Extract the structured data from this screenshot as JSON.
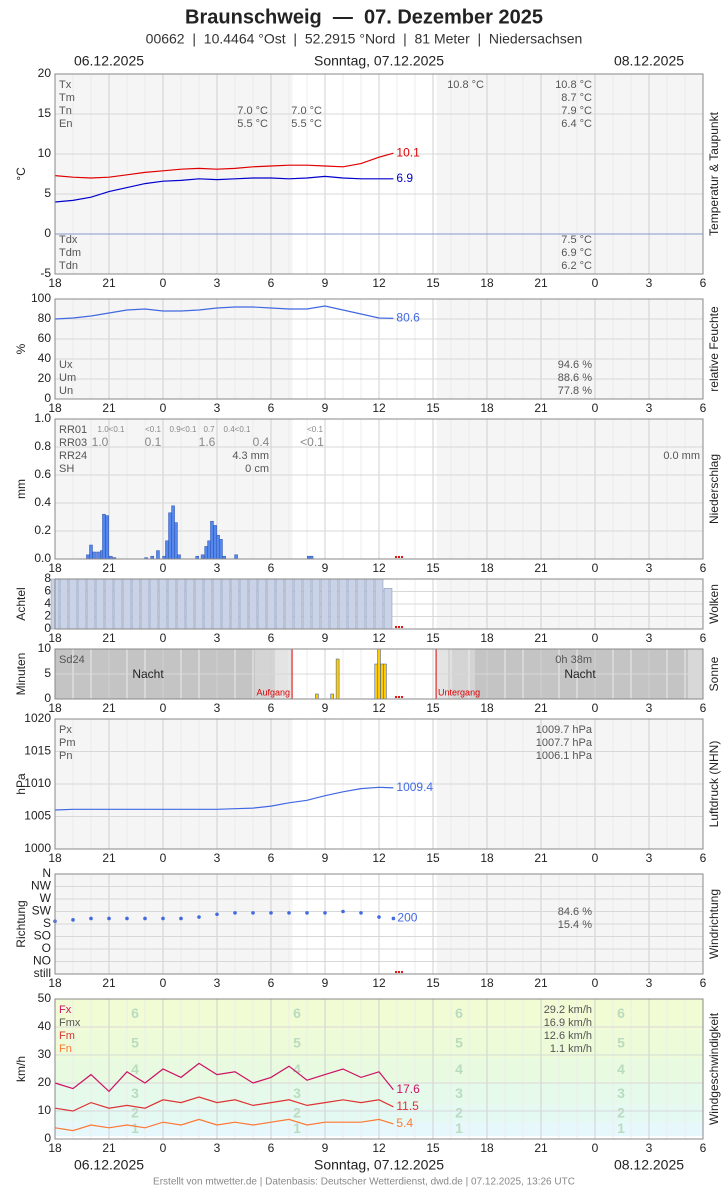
{
  "header": {
    "title": "Braunschweig  —  07. Dezember 2025",
    "subtitle": "00662  |  10.4464 °Ost  |  52.2915 °Nord  |  81 Meter  |  Niedersachsen",
    "dates": [
      "06.12.2025",
      "Sonntag, 07.12.2025",
      "08.12.2025"
    ]
  },
  "x_axis": {
    "xlim": [
      0,
      36
    ],
    "xticks": [
      {
        "value": 0,
        "label": "18"
      },
      {
        "value": 3,
        "label": "21"
      },
      {
        "value": 6,
        "label": "0"
      },
      {
        "value": 9,
        "label": "3"
      },
      {
        "value": 12,
        "label": "6"
      },
      {
        "value": 15,
        "label": "9"
      },
      {
        "value": 18,
        "label": "12"
      },
      {
        "value": 21,
        "label": "15"
      },
      {
        "value": 24,
        "label": "18"
      },
      {
        "value": 27,
        "label": "21"
      },
      {
        "value": 30,
        "label": "0"
      },
      {
        "value": 33,
        "label": "3"
      },
      {
        "value": 36,
        "label": "6"
      }
    ]
  },
  "chart_data": [
    {
      "type": "line",
      "side_label": "Temperatur & Taupunkt",
      "ylabel": "°C",
      "ylim": [
        -5,
        20
      ],
      "yticks": [
        20,
        15,
        10,
        5,
        0,
        -5
      ],
      "x": [
        0,
        1,
        2,
        3,
        4,
        5,
        6,
        7,
        8,
        9,
        10,
        11,
        12,
        13,
        14,
        15,
        16,
        17,
        18,
        18.8
      ],
      "series": [
        {
          "color": "#e00000",
          "values": [
            7.3,
            7.1,
            7.0,
            7.1,
            7.4,
            7.7,
            7.9,
            8.1,
            8.2,
            8.1,
            8.2,
            8.4,
            8.5,
            8.6,
            8.6,
            8.5,
            8.4,
            8.8,
            9.6,
            10.1
          ]
        },
        {
          "color": "#0000cc",
          "values": [
            4.0,
            4.2,
            4.6,
            5.3,
            5.8,
            6.3,
            6.6,
            6.7,
            6.9,
            6.8,
            6.9,
            7.0,
            7.0,
            6.9,
            7.0,
            7.2,
            7.0,
            6.9,
            6.9,
            6.9
          ]
        }
      ],
      "stats": [
        {
          "label": "Tx",
          "cells": [
            null,
            null,
            "10.8 °C",
            "10.8 °C"
          ]
        },
        {
          "label": "Tm",
          "cells": [
            null,
            null,
            null,
            "8.7 °C"
          ]
        },
        {
          "label": "Tn",
          "cells": [
            "7.0 °C",
            "7.0 °C",
            null,
            "7.9 °C"
          ]
        },
        {
          "label": "En",
          "cells": [
            "5.5 °C",
            "5.5 °C",
            null,
            "6.4 °C"
          ]
        },
        {
          "label": "Tdx",
          "cells": [
            "7.5 °C"
          ]
        },
        {
          "label": "Tdm",
          "cells": [
            "6.9 °C"
          ]
        },
        {
          "label": "Tdn",
          "cells": [
            "6.2 °C"
          ]
        }
      ]
    },
    {
      "type": "line",
      "side_label": "relative Feuchte",
      "ylabel": "%",
      "ylim": [
        0,
        100
      ],
      "yticks": [
        100,
        80,
        60,
        40,
        20,
        0
      ],
      "x": [
        0,
        1,
        2,
        3,
        4,
        5,
        6,
        7,
        8,
        9,
        10,
        11,
        12,
        13,
        14,
        15,
        16,
        17,
        18,
        18.8
      ],
      "series": [
        {
          "color": "#4169e1",
          "values": [
            80,
            81,
            83,
            86,
            89,
            90,
            88,
            88,
            89,
            91,
            92,
            92,
            91,
            90,
            90,
            93,
            89,
            85,
            81,
            80.6
          ]
        }
      ],
      "stats": [
        {
          "label": "Ux",
          "cells": [
            "94.6 %"
          ]
        },
        {
          "label": "Um",
          "cells": [
            "88.6 %"
          ]
        },
        {
          "label": "Un",
          "cells": [
            "77.8 %"
          ]
        }
      ]
    },
    {
      "type": "bar",
      "side_label": "Niederschlag",
      "ylabel": "mm",
      "color": "#5588ee",
      "ylim": [
        0,
        1
      ],
      "yticks": [
        {
          "value": 1,
          "label": "1.0"
        },
        {
          "value": 0.8,
          "label": "0.8"
        },
        {
          "value": 0.6,
          "label": "0.6"
        },
        {
          "value": 0.4,
          "label": "0.4"
        },
        {
          "value": 0.2,
          "label": "0.2"
        },
        {
          "value": 0,
          "label": "0.0"
        }
      ],
      "x": [
        1.83,
        2.0,
        2.17,
        2.39,
        2.6,
        2.72,
        2.9,
        3.1,
        3.3,
        5.06,
        5.4,
        5.72,
        6.06,
        6.22,
        6.39,
        6.56,
        6.72,
        6.89,
        7.9,
        8.2,
        8.4,
        8.56,
        8.72,
        8.9,
        9.06,
        9.22,
        9.4,
        10.06,
        14.1,
        14.25
      ],
      "values": [
        0.03,
        0.1,
        0.05,
        0.05,
        0.06,
        0.32,
        0.31,
        0.02,
        0.01,
        0.01,
        0.02,
        0.06,
        0.02,
        0.13,
        0.33,
        0.38,
        0.26,
        0.03,
        0.02,
        0.03,
        0.09,
        0.13,
        0.27,
        0.24,
        0.17,
        0.14,
        0.02,
        0.03,
        0.02,
        0.02
      ],
      "stats": [
        {
          "label": "RR01",
          "cells": [
            "1.0<0.1",
            "<0.1",
            "0.9<0.1",
            "0.7",
            "0.4<0.1",
            "<0.1"
          ]
        },
        {
          "label": "RR03",
          "cells": [
            "1.0",
            "0.1",
            "1.6",
            "0.4",
            "<0.1"
          ]
        },
        {
          "label": "RR24",
          "cells": [
            "4.3 mm",
            "0.0 mm"
          ]
        },
        {
          "label": "SH",
          "cells": [
            "0 cm"
          ]
        }
      ]
    },
    {
      "type": "bar",
      "side_label": "Wolken",
      "ylabel": "Achtel",
      "color": "#c9d2e6",
      "ylim": [
        0,
        8
      ],
      "yticks": [
        8,
        6,
        4,
        2,
        0
      ],
      "x": [
        0,
        0.5,
        1,
        1.5,
        2,
        2.5,
        3,
        3.5,
        4,
        4.5,
        5,
        5.5,
        6,
        6.5,
        7,
        7.5,
        8,
        8.5,
        9,
        9.5,
        10,
        10.5,
        11,
        11.5,
        12,
        12.5,
        13,
        13.5,
        14,
        14.5,
        15,
        15.5,
        16,
        16.5,
        17,
        17.5,
        18,
        18.5
      ],
      "values": [
        8,
        8,
        8,
        8,
        8,
        8,
        8,
        8,
        8,
        8,
        8,
        8,
        8,
        8,
        8,
        8,
        8,
        8,
        8,
        8,
        8,
        8,
        8,
        8,
        8,
        8,
        8,
        8,
        8,
        8,
        8,
        8,
        8,
        8,
        8,
        8,
        8,
        6.5
      ]
    },
    {
      "type": "bar",
      "side_label": "Sonne",
      "ylabel": "Minuten",
      "color": "#ffcc00",
      "ylim": [
        0,
        10
      ],
      "yticks": [
        10,
        5,
        0
      ],
      "x": [
        14.55,
        15.4,
        15.7,
        17.85,
        18.0,
        18.17,
        18.33
      ],
      "values": [
        1,
        1,
        8,
        7,
        10,
        7,
        7
      ],
      "night_label": "Nacht",
      "events": [
        {
          "label": "Aufgang",
          "x": 13.17
        },
        {
          "label": "Untergang",
          "x": 21.17
        }
      ],
      "stats": [
        {
          "label": "Sd24",
          "cells": [
            "0h 38m"
          ]
        }
      ]
    },
    {
      "type": "line",
      "side_label": "Luftdruck (NHN)",
      "ylabel": "hPa",
      "ylim": [
        1000,
        1020
      ],
      "yticks": [
        1020,
        1015,
        1010,
        1005,
        1000
      ],
      "x": [
        0,
        1,
        2,
        3,
        4,
        5,
        6,
        7,
        8,
        9,
        10,
        11,
        12,
        13,
        14,
        15,
        16,
        17,
        18,
        18.8
      ],
      "series": [
        {
          "color": "#4169e1",
          "values": [
            1006.0,
            1006.1,
            1006.1,
            1006.1,
            1006.1,
            1006.1,
            1006.1,
            1006.1,
            1006.1,
            1006.1,
            1006.2,
            1006.3,
            1006.6,
            1007.1,
            1007.5,
            1008.2,
            1008.8,
            1009.3,
            1009.5,
            1009.4
          ]
        }
      ],
      "stats": [
        {
          "label": "Px",
          "cells": [
            "1009.7 hPa"
          ]
        },
        {
          "label": "Pm",
          "cells": [
            "1007.7 hPa"
          ]
        },
        {
          "label": "Pn",
          "cells": [
            "1006.1 hPa"
          ]
        }
      ]
    },
    {
      "type": "scatter",
      "side_label": "Windrichtung",
      "ylabel": "Richtung",
      "color": "#4169e1",
      "ylim": [
        0,
        360
      ],
      "yticks": [
        {
          "value": 360,
          "label": "N"
        },
        {
          "value": 315,
          "label": "NW"
        },
        {
          "value": 270,
          "label": "W"
        },
        {
          "value": 225,
          "label": "SW"
        },
        {
          "value": 180,
          "label": "S"
        },
        {
          "value": 135,
          "label": "SO"
        },
        {
          "value": 90,
          "label": "O"
        },
        {
          "value": 45,
          "label": "NO"
        },
        {
          "value": 0,
          "label": "still"
        }
      ],
      "x": [
        0,
        1,
        2,
        3,
        4,
        5,
        6,
        7,
        8,
        9,
        10,
        11,
        12,
        13,
        14,
        15,
        16,
        17,
        18,
        18.8
      ],
      "values": [
        190,
        195,
        200,
        200,
        200,
        200,
        200,
        200,
        205,
        215,
        220,
        220,
        220,
        220,
        220,
        220,
        225,
        220,
        205,
        200
      ],
      "stats": [
        {
          "cells": [
            "84.6 %"
          ]
        },
        {
          "cells": [
            "15.4 %"
          ]
        }
      ]
    },
    {
      "type": "line",
      "side_label": "Windgeschwindigkeit",
      "ylabel": "km/h",
      "ylim": [
        0,
        50
      ],
      "yticks": [
        50,
        40,
        30,
        20,
        10,
        0
      ],
      "x": [
        0,
        1,
        2,
        3,
        4,
        5,
        6,
        7,
        8,
        9,
        10,
        11,
        12,
        13,
        14,
        15,
        16,
        17,
        18,
        18.8
      ],
      "beaufort": {
        "edges": [
          1,
          6,
          12,
          20,
          29,
          39,
          50
        ],
        "labels": [
          "1",
          "2",
          "3",
          "4",
          "5",
          "6"
        ],
        "colors": [
          "#e6f8fb",
          "#e5f9f3",
          "#e6faeb",
          "#e8fae0",
          "#edfbd8",
          "#f1fcd4"
        ]
      },
      "series": [
        {
          "color": "#cc1166",
          "values": [
            20,
            18,
            23,
            17,
            24,
            20,
            25,
            22,
            27,
            23,
            24,
            20,
            22,
            26,
            21,
            23,
            25,
            22,
            24,
            17.6
          ]
        },
        {
          "color": "#dd3333",
          "values": [
            11,
            10,
            13,
            11,
            12,
            11,
            14,
            13,
            15,
            13,
            14,
            12,
            13,
            14,
            12,
            13,
            14,
            13,
            14,
            11.5
          ]
        },
        {
          "color": "#ff7733",
          "values": [
            4,
            3,
            5,
            4,
            5,
            4,
            6,
            5,
            7,
            5,
            6,
            5,
            6,
            7,
            5,
            6,
            6,
            6,
            7,
            5.4
          ]
        }
      ],
      "stats": [
        {
          "label": "Fx",
          "cells": [
            "29.2 km/h"
          ]
        },
        {
          "label": "Fmx",
          "cells": [
            "16.9 km/h"
          ]
        },
        {
          "label": "Fm",
          "cells": [
            "12.6 km/h"
          ]
        },
        {
          "label": "Fn",
          "cells": [
            "1.1 km/h"
          ]
        }
      ]
    }
  ],
  "footer": "Erstellt von mtwetter.de | Datenbasis: Deutscher Wetterdienst, dwd.de | 07.12.2025, 13:26 UTC"
}
